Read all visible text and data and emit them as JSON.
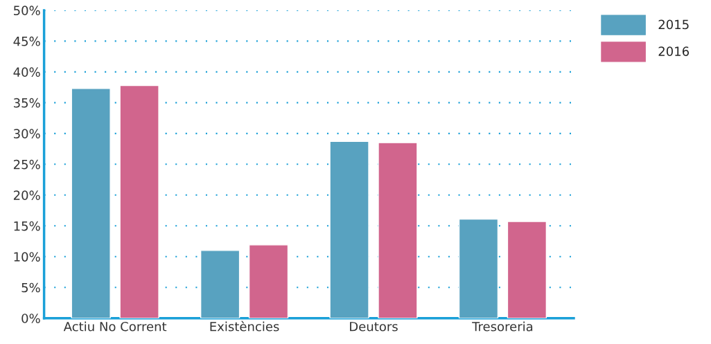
{
  "chart_data": {
    "type": "bar",
    "categories": [
      "Actiu No Corrent",
      "Existències",
      "Deutors",
      "Tresoreria"
    ],
    "series": [
      {
        "name": "2015",
        "color": "#58a2c0",
        "values": [
          37.3,
          11.0,
          28.7,
          16.1
        ]
      },
      {
        "name": "2016",
        "color": "#d1658d",
        "values": [
          37.8,
          11.9,
          28.5,
          15.7
        ]
      }
    ],
    "ylim": [
      0,
      50
    ],
    "yticks": [
      {
        "value": 0,
        "label": "0%"
      },
      {
        "value": 5,
        "label": "5%"
      },
      {
        "value": 10,
        "label": "10%"
      },
      {
        "value": 15,
        "label": "15%"
      },
      {
        "value": 20,
        "label": "20%"
      },
      {
        "value": 25,
        "label": "25%"
      },
      {
        "value": 30,
        "label": "30%"
      },
      {
        "value": 35,
        "label": "35%"
      },
      {
        "value": 40,
        "label": "40%"
      },
      {
        "value": 45,
        "label": "45%"
      },
      {
        "value": 50,
        "label": "50%"
      }
    ],
    "grid": "y",
    "legend": "top right"
  }
}
